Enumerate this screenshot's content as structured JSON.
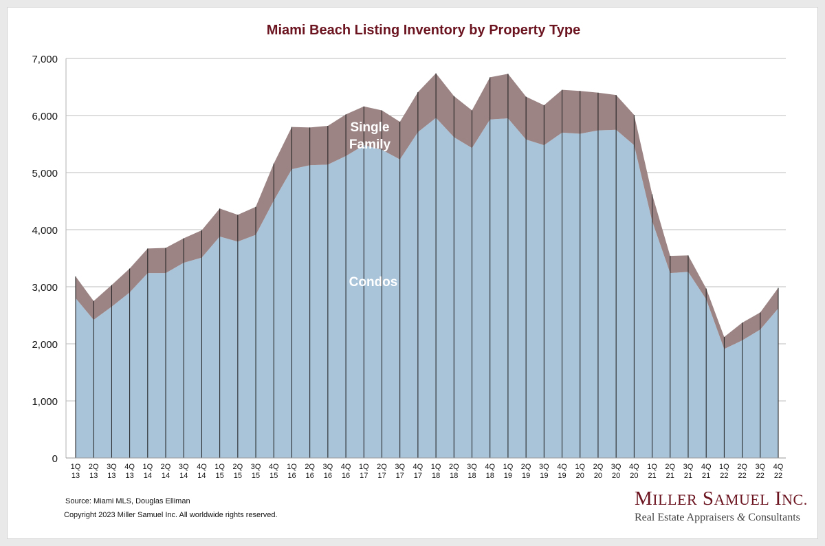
{
  "chart_data": {
    "type": "area",
    "stacked": true,
    "title": "Miami Beach Listing Inventory by Property Type",
    "xlabel": "",
    "ylabel": "",
    "ylim": [
      0,
      7000
    ],
    "yticks": [
      0,
      1000,
      2000,
      3000,
      4000,
      5000,
      6000,
      7000
    ],
    "ytick_labels": [
      "0",
      "1,000",
      "2,000",
      "3,000",
      "4,000",
      "5,000",
      "6,000",
      "7,000"
    ],
    "grid": true,
    "categories": [
      [
        "1Q",
        "13"
      ],
      [
        "2Q",
        "13"
      ],
      [
        "3Q",
        "13"
      ],
      [
        "4Q",
        "13"
      ],
      [
        "1Q",
        "14"
      ],
      [
        "2Q",
        "14"
      ],
      [
        "3Q",
        "14"
      ],
      [
        "4Q",
        "14"
      ],
      [
        "1Q",
        "15"
      ],
      [
        "2Q",
        "15"
      ],
      [
        "3Q",
        "15"
      ],
      [
        "4Q",
        "15"
      ],
      [
        "1Q",
        "16"
      ],
      [
        "2Q",
        "16"
      ],
      [
        "3Q",
        "16"
      ],
      [
        "4Q",
        "16"
      ],
      [
        "1Q",
        "17"
      ],
      [
        "2Q",
        "17"
      ],
      [
        "3Q",
        "17"
      ],
      [
        "4Q",
        "17"
      ],
      [
        "1Q",
        "18"
      ],
      [
        "2Q",
        "18"
      ],
      [
        "3Q",
        "18"
      ],
      [
        "4Q",
        "18"
      ],
      [
        "1Q",
        "19"
      ],
      [
        "2Q",
        "19"
      ],
      [
        "3Q",
        "19"
      ],
      [
        "4Q",
        "19"
      ],
      [
        "1Q",
        "20"
      ],
      [
        "2Q",
        "20"
      ],
      [
        "3Q",
        "20"
      ],
      [
        "4Q",
        "20"
      ],
      [
        "1Q",
        "21"
      ],
      [
        "2Q",
        "21"
      ],
      [
        "3Q",
        "21"
      ],
      [
        "4Q",
        "21"
      ],
      [
        "1Q",
        "22"
      ],
      [
        "2Q",
        "22"
      ],
      [
        "3Q",
        "22"
      ],
      [
        "4Q",
        "22"
      ]
    ],
    "series": [
      {
        "name": "Condos",
        "color": "#a9c4d9",
        "values": [
          2800,
          2420,
          2650,
          2900,
          3240,
          3240,
          3420,
          3510,
          3880,
          3790,
          3910,
          4510,
          5060,
          5130,
          5140,
          5290,
          5480,
          5400,
          5230,
          5710,
          5960,
          5620,
          5430,
          5930,
          5950,
          5580,
          5480,
          5700,
          5680,
          5740,
          5750,
          5480,
          4150,
          3240,
          3260,
          2780,
          1910,
          2060,
          2250,
          2620
        ]
      },
      {
        "name": "Single Family",
        "color": "#9c8485",
        "values": [
          380,
          330,
          380,
          420,
          430,
          440,
          430,
          480,
          490,
          470,
          490,
          650,
          740,
          660,
          680,
          730,
          680,
          690,
          660,
          700,
          780,
          720,
          660,
          740,
          780,
          750,
          700,
          750,
          750,
          660,
          610,
          530,
          470,
          300,
          290,
          190,
          210,
          310,
          300,
          360
        ]
      }
    ],
    "annotations": [
      {
        "text": "Single",
        "series": "Single Family"
      },
      {
        "text": "Family",
        "series": "Single Family"
      },
      {
        "text": "Condos",
        "series": "Condos"
      }
    ]
  },
  "footer": {
    "source": "Source: Miami MLS, Douglas Elliman",
    "copyright": "Copyright 2023 Miller Samuel Inc.  All worldwide rights reserved."
  },
  "logo": {
    "name": "Miller Samuel Inc.",
    "tagline_pre": "Real Estate Appraisers",
    "tagline_amp": "&",
    "tagline_post": "Consultants"
  }
}
